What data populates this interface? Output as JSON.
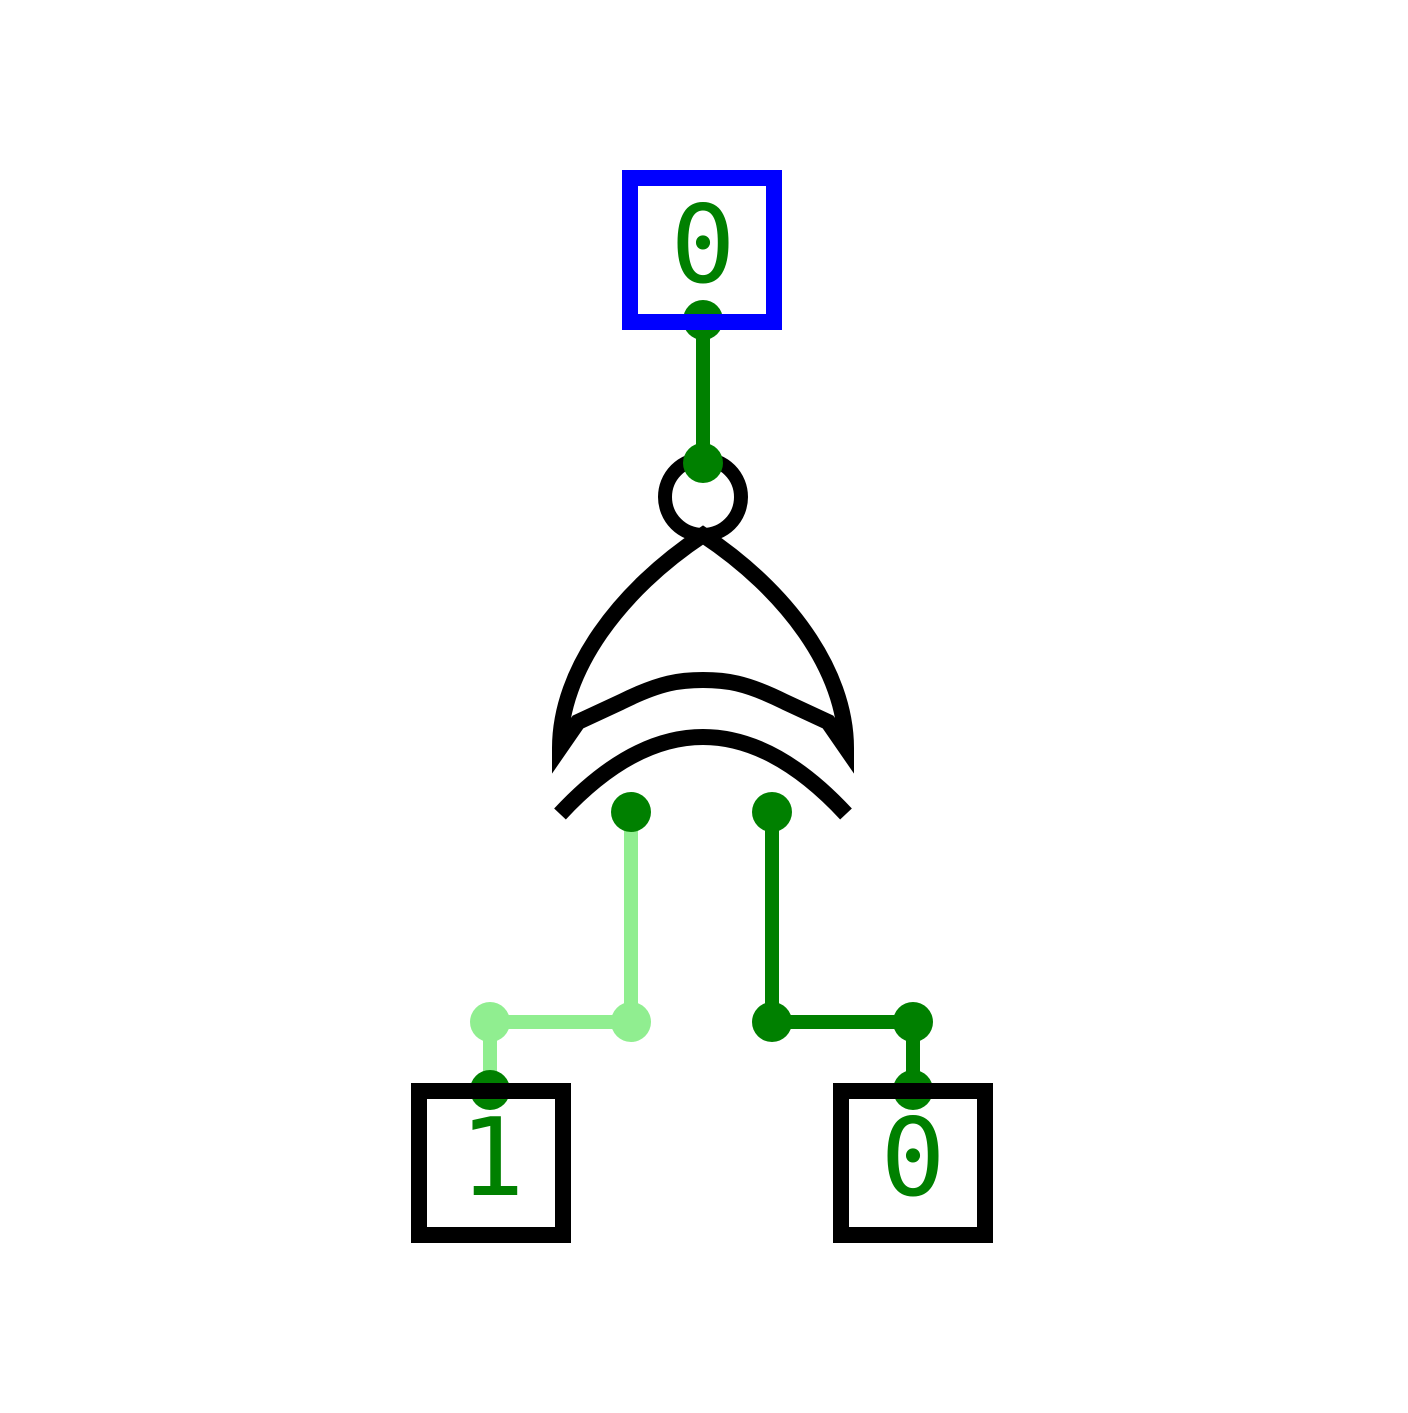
{
  "colors": {
    "background": "#ffffff",
    "gate_stroke": "#000000",
    "output_box_stroke": "#0000ff",
    "input_box_stroke": "#000000",
    "wire_low": "#008000",
    "wire_high": "#90ee90",
    "digit_text": "#008000"
  },
  "gate": {
    "type": "XNOR",
    "icon": "xnor-gate-icon"
  },
  "output": {
    "value": "0"
  },
  "inputs": [
    {
      "value": "1",
      "wire_state": "high"
    },
    {
      "value": "0",
      "wire_state": "low"
    }
  ]
}
